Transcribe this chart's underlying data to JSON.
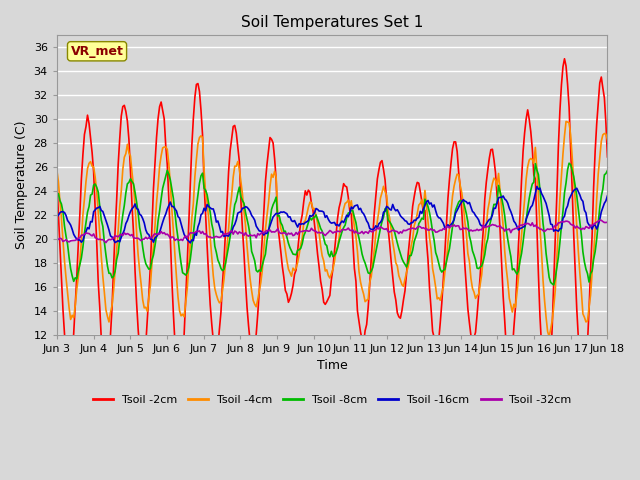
{
  "title": "Soil Temperatures Set 1",
  "xlabel": "Time",
  "ylabel": "Soil Temperature (C)",
  "ylim": [
    12,
    37
  ],
  "yticks": [
    12,
    14,
    16,
    18,
    20,
    22,
    24,
    26,
    28,
    30,
    32,
    34,
    36
  ],
  "bg_color": "#d8d8d8",
  "plot_bg_color": "#d8d8d8",
  "annotation_text": "VR_met",
  "annotation_color": "#8b0000",
  "annotation_bg": "#ffff99",
  "colors": [
    "#ff0000",
    "#ff8c00",
    "#00bb00",
    "#0000cc",
    "#aa00aa"
  ],
  "labels": [
    "Tsoil -2cm",
    "Tsoil -4cm",
    "Tsoil -8cm",
    "Tsoil -16cm",
    "Tsoil -32cm"
  ],
  "xtick_labels": [
    "Jun 3",
    "Jun 4",
    "Jun 5",
    "Jun 6",
    "Jun 7",
    "Jun 8",
    "Jun 9",
    "Jun 10",
    "Jun 11",
    "Jun 12",
    "Jun 13",
    "Jun 14",
    "Jun 15",
    "Jun 16",
    "Jun 17",
    "Jun 18"
  ],
  "num_days": 15,
  "pts_per_day": 24
}
